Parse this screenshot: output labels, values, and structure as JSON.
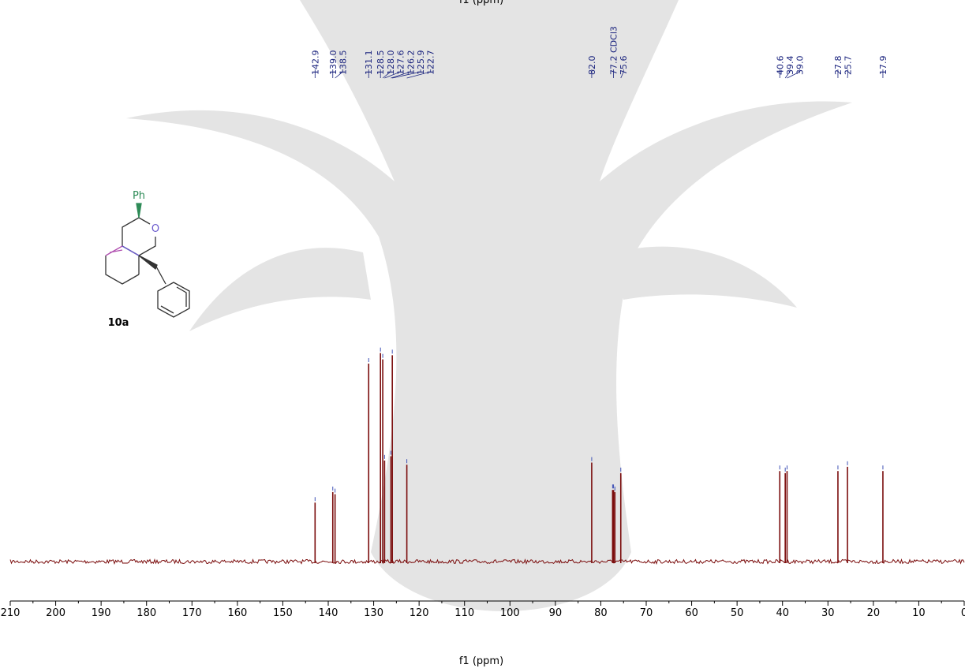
{
  "chart_data": {
    "type": "nmr",
    "x_label": "f1 (ppm)",
    "xlim": [
      210,
      0
    ],
    "xticks": [
      210,
      200,
      190,
      180,
      170,
      160,
      150,
      140,
      130,
      120,
      110,
      100,
      90,
      80,
      70,
      60,
      50,
      40,
      30,
      20,
      10,
      0
    ],
    "ylim": [
      0,
      1
    ],
    "color": "#7b0d0d",
    "peak_color": "#3f51b5",
    "x": [
      142.9,
      139.0,
      138.5,
      131.1,
      128.5,
      128.0,
      127.6,
      126.2,
      125.9,
      122.7,
      82.0,
      77.4,
      77.2,
      76.9,
      75.6,
      40.6,
      39.4,
      39.0,
      27.8,
      25.7,
      17.9
    ],
    "values": [
      0.28,
      0.33,
      0.32,
      0.94,
      0.99,
      0.96,
      0.48,
      0.5,
      0.98,
      0.46,
      0.47,
      0.34,
      0.34,
      0.33,
      0.42,
      0.43,
      0.42,
      0.43,
      0.43,
      0.45,
      0.43
    ],
    "peak_labels": [
      142.9,
      {
        "value": 139.0,
        "label": "139.0"
      },
      138.5,
      131.1,
      128.5,
      {
        "value": 128.0,
        "label": "128.0"
      },
      127.6,
      126.2,
      125.9,
      122.7,
      {
        "value": 82.0,
        "label": "82.0"
      },
      {
        "value": 77.2,
        "label": "77.2 CDCl3"
      },
      75.6,
      40.6,
      39.4,
      {
        "value": 39.0,
        "label": "39.0"
      },
      27.8,
      25.7,
      17.9
    ],
    "compound": {
      "label": "10a",
      "substituent": "Ph",
      "heteroatom": "O"
    }
  }
}
